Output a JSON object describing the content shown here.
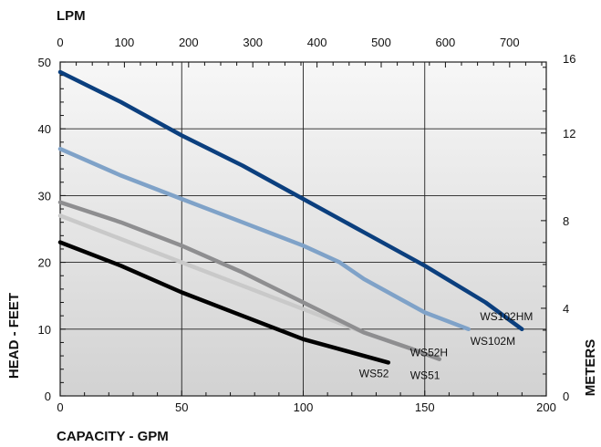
{
  "chart_data": {
    "type": "line",
    "title": "",
    "xlabel": "CAPACITY - GPM",
    "ylabel": "HEAD - FEET",
    "top_xlabel": "LPM",
    "right_ylabel": "METERS",
    "xlim": [
      0,
      200
    ],
    "ylim": [
      0,
      50
    ],
    "top_xlim_lpm": [
      0,
      757.08
    ],
    "right_ylim_m": [
      0,
      15.24
    ],
    "x_ticks": [
      "0",
      "50",
      "100",
      "150",
      "200"
    ],
    "y_ticks": [
      "0",
      "10",
      "20",
      "30",
      "40",
      "50"
    ],
    "top_ticks": [
      "0",
      "100",
      "200",
      "300",
      "400",
      "500",
      "600",
      "700"
    ],
    "right_ticks": [
      "0",
      "4",
      "8",
      "12",
      "16"
    ],
    "grid": true,
    "series": [
      {
        "name": "WS102HM",
        "color": "#0b3f7e",
        "x": [
          0,
          25,
          50,
          75,
          100,
          125,
          150,
          175,
          190
        ],
        "y": [
          48.5,
          44,
          39,
          34.5,
          29.5,
          24.5,
          19.5,
          14,
          10
        ]
      },
      {
        "name": "WS102M",
        "color": "#7fa2c8",
        "x": [
          0,
          25,
          50,
          75,
          100,
          115,
          125,
          140,
          150,
          168
        ],
        "y": [
          37,
          33,
          29.5,
          26,
          22.5,
          20,
          17.5,
          14.5,
          12.5,
          10
        ]
      },
      {
        "name": "WS52H",
        "color": "#8e8e90",
        "x": [
          0,
          25,
          50,
          75,
          100,
          125,
          145,
          156
        ],
        "y": [
          29,
          26,
          22.5,
          18.5,
          14,
          9.5,
          7,
          5.5
        ]
      },
      {
        "name": "WS51",
        "color": "#c9c9c9",
        "x": [
          0,
          25,
          50,
          75,
          100,
          125,
          145,
          156
        ],
        "y": [
          27,
          23.5,
          20,
          16.5,
          13,
          9.5,
          7,
          5.5
        ]
      },
      {
        "name": "WS52",
        "color": "#000000",
        "x": [
          0,
          25,
          50,
          75,
          100,
          120,
          135
        ],
        "y": [
          23,
          19.5,
          15.5,
          12,
          8.5,
          6.5,
          5
        ]
      }
    ]
  }
}
